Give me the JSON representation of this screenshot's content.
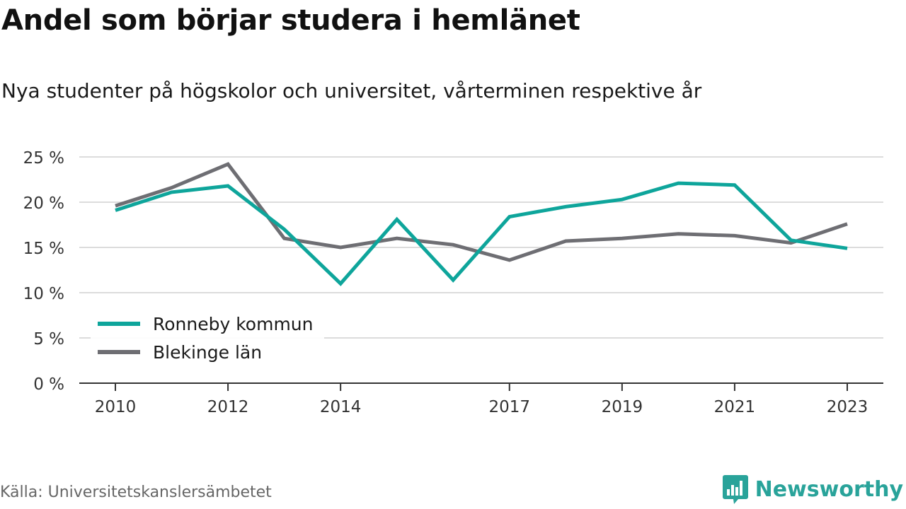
{
  "header": {
    "title": "Andel som börjar studera i hemlänet",
    "subtitle": "Nya studenter på högskolor och universitet, vårterminen respektive år"
  },
  "footer": {
    "source": "Källa: Universitetskanslersämbetet",
    "brand": "Newsworthy",
    "brand_icon": "bar-chart-logo-icon",
    "brand_color": "#29a39a"
  },
  "chart_data": {
    "type": "line",
    "x": [
      2010,
      2011,
      2012,
      2013,
      2014,
      2015,
      2016,
      2017,
      2018,
      2019,
      2020,
      2021,
      2022,
      2023
    ],
    "x_tick_labels": [
      "2010",
      "2012",
      "2014",
      "2017",
      "2019",
      "2021",
      "2023"
    ],
    "y_tick_labels": [
      "0 %",
      "5 %",
      "10 %",
      "15 %",
      "20 %",
      "25 %"
    ],
    "y_ticks": [
      0,
      5,
      10,
      15,
      20,
      25
    ],
    "ylim": [
      0,
      25
    ],
    "grid": true,
    "legend_position": "bottom-left",
    "series": [
      {
        "name": "Ronneby kommun",
        "color": "#0ea59b",
        "values": [
          19.1,
          21.1,
          21.8,
          17.0,
          11.0,
          18.1,
          11.4,
          18.4,
          19.5,
          20.3,
          22.1,
          21.9,
          15.8,
          14.9
        ]
      },
      {
        "name": "Blekinge län",
        "color": "#6e6e73",
        "values": [
          19.6,
          21.6,
          24.2,
          16.0,
          15.0,
          16.0,
          15.3,
          13.6,
          15.7,
          16.0,
          16.5,
          16.3,
          15.5,
          17.6
        ]
      }
    ]
  }
}
